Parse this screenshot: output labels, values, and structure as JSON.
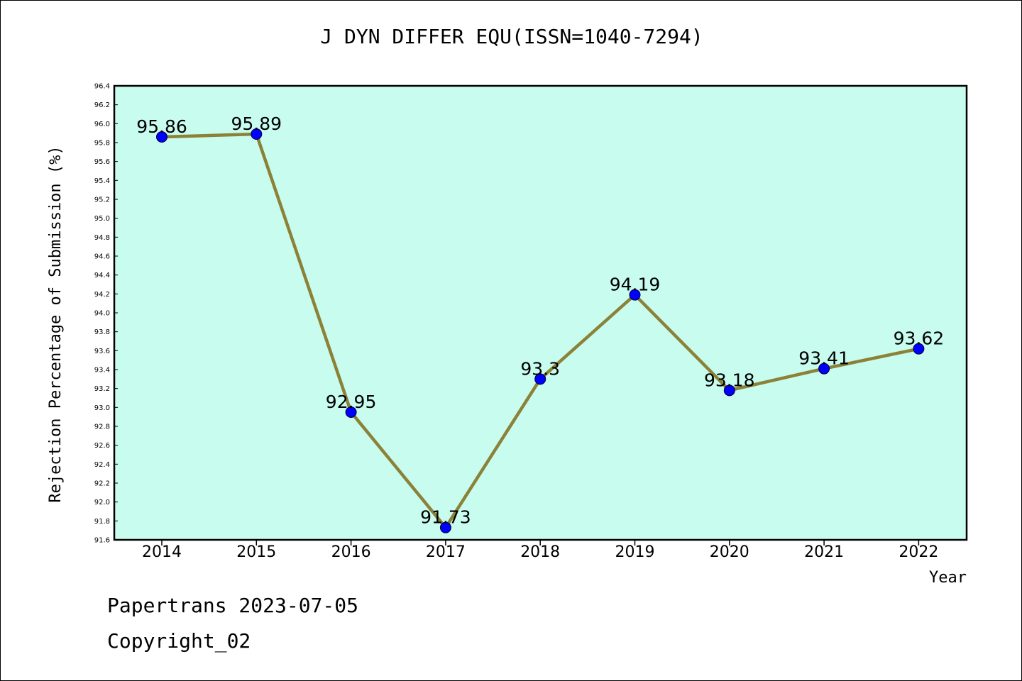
{
  "chart_data": {
    "type": "line",
    "title": "J DYN DIFFER EQU(ISSN=1040-7294)",
    "xlabel": "Year",
    "ylabel": "Rejection Percentage of Submission (%)",
    "categories": [
      "2014",
      "2015",
      "2016",
      "2017",
      "2018",
      "2019",
      "2020",
      "2021",
      "2022"
    ],
    "values": [
      95.86,
      95.89,
      92.95,
      91.73,
      93.3,
      94.19,
      93.18,
      93.41,
      93.62
    ],
    "data_labels": [
      "95.86",
      "95.89",
      "92.95",
      "91.73",
      "93.3",
      "94.19",
      "93.18",
      "93.41",
      "93.62"
    ],
    "ylim": [
      91.6,
      96.4
    ],
    "yticks": [
      "91.6",
      "91.8",
      "92.0",
      "92.2",
      "92.4",
      "92.6",
      "92.8",
      "93.0",
      "93.2",
      "93.4",
      "93.6",
      "93.8",
      "94.0",
      "94.2",
      "94.4",
      "94.6",
      "94.8",
      "95.0",
      "95.2",
      "95.4",
      "95.6",
      "95.8",
      "96.0",
      "96.2",
      "96.4"
    ],
    "grid": false,
    "colors": {
      "plot_background": "#c8fcee",
      "line": "#8b8238",
      "marker": "#0000ff"
    }
  },
  "footer": {
    "line1": "Papertrans 2023-07-05",
    "line2": "Copyright_02"
  }
}
